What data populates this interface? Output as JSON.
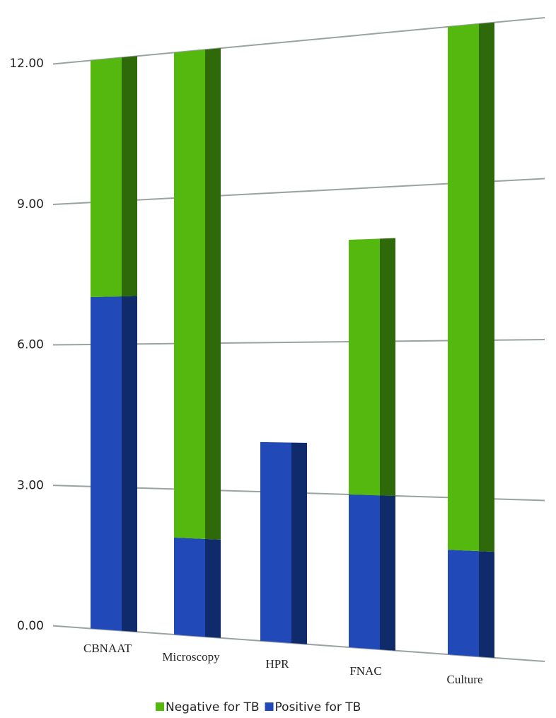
{
  "chart_data": {
    "type": "bar",
    "stacked": true,
    "categories": [
      "CBNAAT",
      "Microscopy",
      "HPR",
      "FNAC",
      "Culture"
    ],
    "series": [
      {
        "name": "Negative for TB",
        "color": "#55b80f",
        "side_color": "#2f6a0a",
        "values": [
          5,
          10,
          0,
          5,
          10
        ]
      },
      {
        "name": "Positive for TB",
        "color": "#2149b8",
        "side_color": "#0f2b6b",
        "values": [
          7,
          2,
          4,
          3,
          2
        ]
      }
    ],
    "ylim": [
      0,
      12
    ],
    "yticks": [
      {
        "value": 0,
        "label": "0.00"
      },
      {
        "value": 3,
        "label": "3.00"
      },
      {
        "value": 6,
        "label": "6.00"
      },
      {
        "value": 9,
        "label": "9.00"
      },
      {
        "value": 12,
        "label": "12.00"
      }
    ],
    "grid": true,
    "legend": "bottom"
  }
}
